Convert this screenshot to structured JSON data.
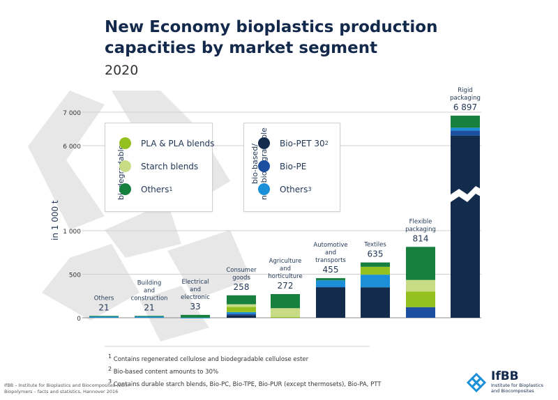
{
  "title": "New Economy bioplastics production capacities by market segment",
  "subtitle": "2020",
  "chart_data": {
    "type": "bar",
    "stacked": true,
    "ylabel": "in 1 000 t",
    "y_ticks": [
      "0",
      "500",
      "1 000",
      "6 000",
      "7 000"
    ],
    "axis_break": "between 1 000 and 6 000",
    "categories": [
      "Others",
      "Building and construction",
      "Electrical and electronic",
      "Consumer goods",
      "Agriculture and horticulture",
      "Automotive and transports",
      "Textiles",
      "Flexible packaging",
      "Rigid packaging"
    ],
    "category_labels": [
      [
        "Others"
      ],
      [
        "Building",
        "and",
        "construction"
      ],
      [
        "Electrical",
        "and",
        "electronic"
      ],
      [
        "Consumer",
        "goods"
      ],
      [
        "Agriculture",
        "and",
        "horticulture"
      ],
      [
        "Automotive",
        "and",
        "transports"
      ],
      [
        "Textiles"
      ],
      [
        "Flexible",
        "packaging"
      ],
      [
        "Rigid",
        "packaging"
      ]
    ],
    "totals": [
      "21",
      "21",
      "33",
      "258",
      "272",
      "455",
      "635",
      "814",
      "6 897"
    ],
    "series": [
      {
        "name": "Bio-PET 30",
        "footnote": "2",
        "color": "#132c4d",
        "values": [
          0,
          0,
          0,
          30,
          0,
          350,
          350,
          0,
          6300
        ]
      },
      {
        "name": "Bio-PE",
        "color": "#1d4fa0",
        "values": [
          0,
          0,
          0,
          15,
          0,
          5,
          0,
          122,
          150
        ]
      },
      {
        "name": "Others",
        "footnote": "3",
        "color": "#1b8fd8",
        "values": [
          20,
          20,
          2,
          20,
          0,
          75,
          145,
          0,
          85
        ]
      },
      {
        "name": "PLA & PLA blends",
        "color": "#94c11f",
        "values": [
          0,
          0,
          0,
          60,
          10,
          0,
          90,
          178,
          0
        ]
      },
      {
        "name": "Starch blends",
        "color": "#c8dc85",
        "values": [
          0,
          0,
          0,
          30,
          100,
          0,
          0,
          134,
          0
        ]
      },
      {
        "name": "Others",
        "footnote": "1",
        "color": "#17803f",
        "values": [
          1,
          1,
          31,
          103,
          162,
          25,
          50,
          380,
          362
        ]
      }
    ],
    "legend_groups": [
      {
        "label": [
          "biodegradable"
        ],
        "series": [
          3,
          4,
          5
        ]
      },
      {
        "label": [
          "bio-based/",
          "non-biodegradable"
        ],
        "series": [
          0,
          1,
          2
        ]
      }
    ]
  },
  "footnotes": [
    {
      "mark": "1",
      "text": "Contains regenerated cellulose and biodegradable cellulose ester"
    },
    {
      "mark": "2",
      "text": "Bio-based content amounts to 30%"
    },
    {
      "mark": "3",
      "text": "Contains durable starch blends, Bio-PC, Bio-TPE, Bio-PUR (except thermosets), Bio-PA, PTT"
    }
  ],
  "source": [
    "IfBB – Institute for Bioplastics and Biocomposites (ed.):",
    "Biopolymers – facts and statistics, Hannover 2016"
  ],
  "logo": {
    "name": "IfBB",
    "sub": [
      "Institute for Bioplastics",
      "and Biocomposites"
    ],
    "color": "#1b8fd8",
    "icon": "ifbb-logo-icon"
  }
}
